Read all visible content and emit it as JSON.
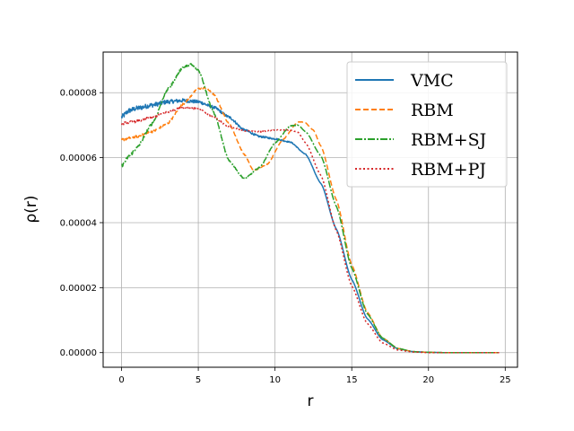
{
  "chart_data": {
    "type": "line",
    "xlabel": "r",
    "ylabel": "ρ(r)",
    "xlim": [
      -1.2,
      25.8
    ],
    "ylim": [
      -4.5e-06,
      9.25e-05
    ],
    "xticks": [
      0,
      5,
      10,
      15,
      20,
      25
    ],
    "xtick_labels": [
      "0",
      "5",
      "10",
      "15",
      "20",
      "25"
    ],
    "yticks": [
      0,
      2e-05,
      4e-05,
      6e-05,
      8e-05
    ],
    "ytick_labels": [
      "0.00000",
      "0.00002",
      "0.00004",
      "0.00006",
      "0.00008"
    ],
    "grid": true,
    "legend_position": "top-right",
    "series": [
      {
        "name": "VMC",
        "color": "#1f77b4",
        "dash": "",
        "noise": 8e-07,
        "x": [
          0,
          0.5,
          1,
          2,
          3,
          4,
          5,
          6,
          7,
          8,
          9,
          10,
          11,
          12,
          13,
          14,
          15,
          16,
          17,
          18,
          19,
          20,
          21,
          22,
          23,
          24.6
        ],
        "y": [
          7.25e-05,
          7.45e-05,
          7.52e-05,
          7.62e-05,
          7.72e-05,
          7.76e-05,
          7.72e-05,
          7.55e-05,
          7.25e-05,
          6.85e-05,
          6.65e-05,
          6.58e-05,
          6.48e-05,
          6.1e-05,
          5.2e-05,
          3.8e-05,
          2.25e-05,
          1.05e-05,
          4e-06,
          1.2e-06,
          3e-07,
          1e-07,
          0,
          0,
          0,
          0
        ]
      },
      {
        "name": "RBM",
        "color": "#ff7f0e",
        "dash": "6,3",
        "noise": 4e-07,
        "x": [
          0,
          1,
          2,
          3,
          4,
          5,
          5.5,
          6,
          7,
          8,
          8.6,
          9.5,
          10.5,
          11.5,
          11.9,
          12.5,
          13,
          14,
          15,
          16,
          17,
          18,
          19,
          20,
          21,
          22,
          24.6
        ],
        "y": [
          6.55e-05,
          6.65e-05,
          6.8e-05,
          7.05e-05,
          7.65e-05,
          8.12e-05,
          8.15e-05,
          7.95e-05,
          7.05e-05,
          6.1e-05,
          5.6e-05,
          5.8e-05,
          6.55e-05,
          7.1e-05,
          7.1e-05,
          6.85e-05,
          6.35e-05,
          4.7e-05,
          2.7e-05,
          1.25e-05,
          4.5e-06,
          1.3e-06,
          3e-07,
          1e-07,
          0,
          0,
          0
        ]
      },
      {
        "name": "RBM+SJ",
        "color": "#2ca02c",
        "dash": "8,2,2,2",
        "noise": 5e-07,
        "x": [
          0,
          0.5,
          1,
          2,
          3,
          4,
          4.5,
          5,
          6,
          7,
          8,
          9,
          10,
          11,
          11.5,
          12,
          13,
          14,
          15,
          16,
          17,
          18,
          19,
          20,
          21,
          22,
          24.6
        ],
        "y": [
          5.75e-05,
          6.05e-05,
          6.3e-05,
          7.05e-05,
          8.1e-05,
          8.78e-05,
          8.87e-05,
          8.7e-05,
          7.4e-05,
          5.9e-05,
          5.35e-05,
          5.7e-05,
          6.45e-05,
          6.98e-05,
          7e-05,
          6.8e-05,
          6.05e-05,
          4.5e-05,
          2.6e-05,
          1.2e-05,
          4.5e-06,
          1.3e-06,
          3e-07,
          1e-07,
          0,
          0,
          0
        ]
      },
      {
        "name": "RBM+PJ",
        "color": "#d62728",
        "dash": "2,2.5",
        "noise": 4e-07,
        "x": [
          0,
          1,
          2,
          3,
          4,
          5,
          6,
          7,
          8,
          9,
          10,
          11,
          11.5,
          12,
          13,
          14,
          15,
          16,
          17,
          18,
          19,
          20,
          21,
          24.6
        ],
        "y": [
          7.05e-05,
          7.12e-05,
          7.25e-05,
          7.4e-05,
          7.55e-05,
          7.5e-05,
          7.25e-05,
          6.95e-05,
          6.83e-05,
          6.8e-05,
          6.85e-05,
          6.85e-05,
          6.78e-05,
          6.45e-05,
          5.45e-05,
          3.75e-05,
          2.05e-05,
          9e-06,
          3e-06,
          8e-07,
          2e-07,
          0,
          0,
          0
        ]
      }
    ]
  }
}
